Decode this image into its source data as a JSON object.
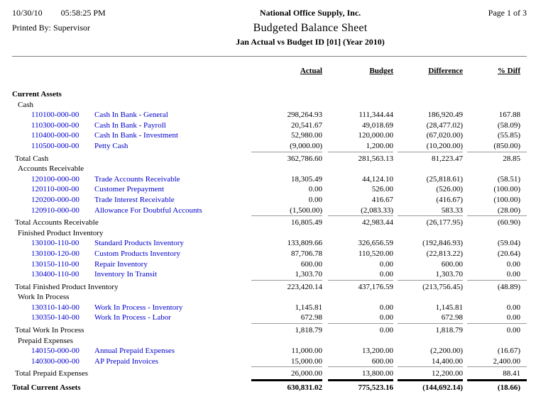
{
  "header": {
    "date": "10/30/10",
    "time": "05:58:25 PM",
    "printed_by": "Printed By: Supervisor",
    "company": "National Office Supply, Inc.",
    "title": "Budgeted Balance Sheet",
    "subtitle": "Jan Actual vs Budget ID [01] (Year 2010)",
    "page": "Page 1 of 3"
  },
  "columns": {
    "c1": "Actual",
    "c2": "Budget",
    "c3": "Difference",
    "c4": "% Diff"
  },
  "colors": {
    "account_link": "#0000cc",
    "total_rule": "#999999",
    "header_rule": "#808080",
    "grand_total_rule": "#000000"
  },
  "rows": [
    {
      "type": "group1",
      "label": "Current Assets"
    },
    {
      "type": "group2",
      "label": "Cash"
    },
    {
      "type": "account",
      "number": "110100-000-00",
      "name": "Cash In Bank - General",
      "values": [
        "298,264.93",
        "111,344.44",
        "186,920.49",
        "167.88"
      ]
    },
    {
      "type": "account",
      "number": "110300-000-00",
      "name": "Cash In Bank - Payroll",
      "values": [
        "20,541.67",
        "49,018.69",
        "(28,477.02)",
        "(58.09)"
      ]
    },
    {
      "type": "account",
      "number": "110400-000-00",
      "name": "Cash In Bank - Investment",
      "values": [
        "52,980.00",
        "120,000.00",
        "(67,020.00)",
        "(55.85)"
      ]
    },
    {
      "type": "account",
      "number": "110500-000-00",
      "name": "Petty Cash",
      "values": [
        "(9,000.00)",
        "1,200.00",
        "(10,200.00)",
        "(850.00)"
      ]
    },
    {
      "type": "total",
      "label": "Total Cash",
      "values": [
        "362,786.60",
        "281,563.13",
        "81,223.47",
        "28.85"
      ]
    },
    {
      "type": "group2",
      "label": "Accounts Receivable"
    },
    {
      "type": "account",
      "number": "120100-000-00",
      "name": "Trade Accounts Receivable",
      "values": [
        "18,305.49",
        "44,124.10",
        "(25,818.61)",
        "(58.51)"
      ]
    },
    {
      "type": "account",
      "number": "120110-000-00",
      "name": "Customer Prepayment",
      "values": [
        "0.00",
        "526.00",
        "(526.00)",
        "(100.00)"
      ]
    },
    {
      "type": "account",
      "number": "120200-000-00",
      "name": "Trade Interest Receivable",
      "values": [
        "0.00",
        "416.67",
        "(416.67)",
        "(100.00)"
      ]
    },
    {
      "type": "account",
      "number": "120910-000-00",
      "name": "Allowance For Doubtful Accounts",
      "values": [
        "(1,500.00)",
        "(2,083.33)",
        "583.33",
        "(28.00)"
      ]
    },
    {
      "type": "total",
      "label": "Total Accounts Receivable",
      "values": [
        "16,805.49",
        "42,983.44",
        "(26,177.95)",
        "(60.90)"
      ]
    },
    {
      "type": "group2",
      "label": "Finished Product Inventory"
    },
    {
      "type": "account",
      "number": "130100-110-00",
      "name": "Standard Products Inventory",
      "values": [
        "133,809.66",
        "326,656.59",
        "(192,846.93)",
        "(59.04)"
      ]
    },
    {
      "type": "account",
      "number": "130100-120-00",
      "name": "Custom Products Inventory",
      "values": [
        "87,706.78",
        "110,520.00",
        "(22,813.22)",
        "(20.64)"
      ]
    },
    {
      "type": "account",
      "number": "130150-110-00",
      "name": "Repair Inventory",
      "values": [
        "600.00",
        "0.00",
        "600.00",
        "0.00"
      ]
    },
    {
      "type": "account",
      "number": "130400-110-00",
      "name": "Inventory In Transit",
      "values": [
        "1,303.70",
        "0.00",
        "1,303.70",
        "0.00"
      ]
    },
    {
      "type": "total",
      "label": "Total Finished Product Inventory",
      "values": [
        "223,420.14",
        "437,176.59",
        "(213,756.45)",
        "(48.89)"
      ]
    },
    {
      "type": "group2",
      "label": "Work In Process"
    },
    {
      "type": "account",
      "number": "130310-140-00",
      "name": "Work In Process - Inventory",
      "values": [
        "1,145.81",
        "0.00",
        "1,145.81",
        "0.00"
      ]
    },
    {
      "type": "account",
      "number": "130350-140-00",
      "name": "Work In Process - Labor",
      "values": [
        "672.98",
        "0.00",
        "672.98",
        "0.00"
      ]
    },
    {
      "type": "total",
      "label": "Total Work In Process",
      "values": [
        "1,818.79",
        "0.00",
        "1,818.79",
        "0.00"
      ]
    },
    {
      "type": "group2",
      "label": "Prepaid Expenses"
    },
    {
      "type": "account",
      "number": "140150-000-00",
      "name": "Annual Prepaid Expenses",
      "values": [
        "11,000.00",
        "13,200.00",
        "(2,200.00)",
        "(16.67)"
      ]
    },
    {
      "type": "account",
      "number": "140300-000-00",
      "name": "AP Prepaid Invoices",
      "values": [
        "15,000.00",
        "600.00",
        "14,400.00",
        "2,400.00"
      ]
    },
    {
      "type": "total",
      "label": "Total Prepaid Expenses",
      "values": [
        "26,000.00",
        "13,800.00",
        "12,200.00",
        "88.41"
      ]
    },
    {
      "type": "grandtotal",
      "label": "Total Current Assets",
      "values": [
        "630,831.02",
        "775,523.16",
        "(144,692.14)",
        "(18.66)"
      ]
    }
  ]
}
